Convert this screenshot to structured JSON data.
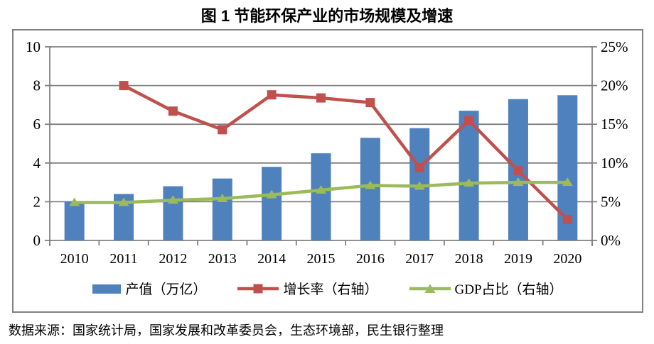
{
  "title": "图 1 节能环保产业的市场规模及增速",
  "source_note": "数据来源：国家统计局，国家发展和改革委员会，生态环境部，民生银行整理",
  "colors": {
    "bar": "#4F81BD",
    "growth_line": "#C0504D",
    "gdp_line": "#9BBB59",
    "grid": "#808080",
    "text": "#000000"
  },
  "legend": [
    {
      "label": "产值（万亿）",
      "type": "bar",
      "color": "#4F81BD"
    },
    {
      "label": "增长率（右轴）",
      "type": "line-square",
      "color": "#C0504D"
    },
    {
      "label": "GDP占比（右轴）",
      "type": "line-triangle",
      "color": "#9BBB59"
    }
  ],
  "chart_data": {
    "type": "bar",
    "categories": [
      "2010",
      "2011",
      "2012",
      "2013",
      "2014",
      "2015",
      "2016",
      "2017",
      "2018",
      "2019",
      "2020"
    ],
    "series": [
      {
        "name": "产值（万亿）",
        "type": "bar",
        "axis": "left",
        "color": "#4F81BD",
        "values": [
          2.0,
          2.4,
          2.8,
          3.2,
          3.8,
          4.5,
          5.3,
          5.8,
          6.7,
          7.3,
          7.5
        ]
      },
      {
        "name": "增长率（右轴）",
        "type": "line",
        "marker": "square",
        "axis": "right",
        "color": "#C0504D",
        "values": [
          null,
          20.0,
          16.7,
          14.3,
          18.8,
          18.4,
          17.8,
          9.4,
          15.5,
          9.0,
          2.7
        ]
      },
      {
        "name": "GDP占比（右轴）",
        "type": "line",
        "marker": "triangle",
        "axis": "right",
        "color": "#9BBB59",
        "values": [
          4.9,
          4.9,
          5.2,
          5.4,
          5.9,
          6.5,
          7.1,
          7.0,
          7.4,
          7.5,
          7.5
        ]
      }
    ],
    "left_axis": {
      "min": 0,
      "max": 10,
      "tick_values": [
        0,
        2,
        4,
        6,
        8,
        10
      ],
      "ticks": [
        "0",
        "2",
        "4",
        "6",
        "8",
        "10"
      ]
    },
    "right_axis": {
      "min": 0,
      "max": 25,
      "tick_values": [
        0,
        5,
        10,
        15,
        20,
        25
      ],
      "ticks": [
        "0%",
        "5%",
        "10%",
        "15%",
        "20%",
        "25%"
      ]
    },
    "grid": true,
    "legend_position": "bottom"
  }
}
